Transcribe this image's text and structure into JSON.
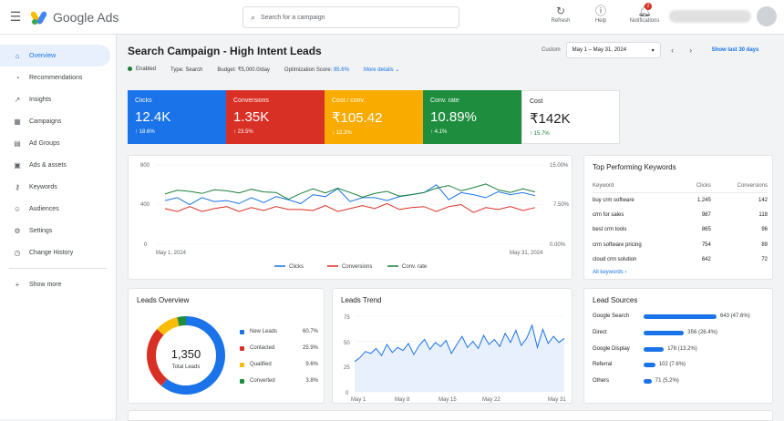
{
  "app": {
    "title": "Google Ads"
  },
  "search": {
    "placeholder": "Search for a campaign"
  },
  "top_actions": [
    {
      "label": "Refresh",
      "icon": "refresh-icon"
    },
    {
      "label": "Help",
      "icon": "help-icon"
    },
    {
      "label": "Notifications",
      "icon": "bell-icon",
      "badge": "2"
    }
  ],
  "sidebar": {
    "items": [
      {
        "label": "Overview",
        "icon": "home-icon",
        "active": true
      },
      {
        "label": "Recommendations",
        "icon": "lightbulb-icon"
      },
      {
        "label": "Insights",
        "icon": "insights-icon"
      },
      {
        "label": "Campaigns",
        "icon": "campaigns-icon"
      },
      {
        "label": "Ad Groups",
        "icon": "ad-groups-icon"
      },
      {
        "label": "Ads & assets",
        "icon": "ads-icon"
      },
      {
        "label": "Keywords",
        "icon": "key-icon"
      },
      {
        "label": "Audiences",
        "icon": "audience-icon"
      },
      {
        "label": "Settings",
        "icon": "settings-icon"
      },
      {
        "label": "Change History",
        "icon": "history-icon"
      }
    ],
    "show_more": "Show more"
  },
  "header": {
    "title": "Search Campaign - High Intent Leads",
    "status": "Enabled",
    "type": "Type: Search",
    "budget": "Budget: ₹5,000.0/day",
    "optimization_label": "Optimization Score:",
    "optimization_value": "85.6%",
    "more_details": "More details",
    "custom_label": "Custom",
    "date_range": "May 1 – May 31, 2024",
    "show_last": "Show last 30 days"
  },
  "metrics": [
    {
      "label": "Clicks",
      "value": "12.4K",
      "delta": "↑ 18.6%",
      "color": "#1a73e8"
    },
    {
      "label": "Conversions",
      "value": "1.35K",
      "delta": "↑ 23.5%",
      "color": "#d93025"
    },
    {
      "label": "Cost / conv.",
      "value": "₹105.42",
      "delta": "↓ 12.3%",
      "color": "#f9ab00"
    },
    {
      "label": "Conv. rate",
      "value": "10.89%",
      "delta": "↑ 4.1%",
      "color": "#1e8e3e"
    },
    {
      "label": "Cost",
      "value": "₹142K",
      "delta": "↑ 15.7%",
      "color": "#ffffff"
    }
  ],
  "chart_data": [
    {
      "type": "line",
      "x_labels": [
        "May 1, 2024",
        "May 31, 2024"
      ],
      "y_left": {
        "ticks": [
          "800",
          "400",
          "0"
        ],
        "ylim": [
          0,
          800
        ]
      },
      "y_right": {
        "ticks": [
          "15.00%",
          "7.50%",
          "0.00%"
        ],
        "ylim": [
          0,
          15
        ]
      },
      "series": [
        {
          "name": "Clicks",
          "color": "#1a73e8",
          "axis": "left",
          "values": [
            440,
            470,
            400,
            470,
            430,
            440,
            410,
            470,
            420,
            480,
            450,
            410,
            500,
            480,
            560,
            430,
            470,
            470,
            440,
            480,
            500,
            520,
            600,
            450,
            520,
            500,
            470,
            530,
            500,
            520,
            490
          ]
        },
        {
          "name": "Conversions",
          "color": "#d93025",
          "axis": "left",
          "values": [
            360,
            330,
            380,
            330,
            360,
            380,
            330,
            370,
            340,
            380,
            350,
            350,
            340,
            390,
            330,
            360,
            390,
            360,
            410,
            350,
            370,
            380,
            330,
            380,
            400,
            320,
            370,
            350,
            380,
            340,
            370
          ]
        },
        {
          "name": "Conv. rate",
          "color": "#188038",
          "axis": "right",
          "values": [
            9.5,
            10.2,
            10.0,
            9.6,
            10.3,
            10.1,
            9.7,
            10.4,
            9.9,
            9.8,
            8.5,
            9.6,
            10.5,
            9.7,
            10.6,
            9.8,
            8.9,
            9.6,
            10.0,
            9.1,
            9.4,
            9.8,
            10.6,
            11.1,
            10.1,
            10.7,
            11.4,
            10.3,
            9.8,
            10.5,
            9.9
          ]
        }
      ]
    },
    {
      "type": "pie",
      "title": "Leads Overview",
      "center_value": "1,350",
      "center_label": "Total Leads",
      "slices": [
        {
          "name": "New Leads",
          "value": 60.7,
          "label": "60.7%",
          "color": "#1a73e8"
        },
        {
          "name": "Contacted",
          "value": 25.9,
          "label": "25.9%",
          "color": "#d93025"
        },
        {
          "name": "Qualified",
          "value": 9.6,
          "label": "9.6%",
          "color": "#fbbc04"
        },
        {
          "name": "Converted",
          "value": 3.8,
          "label": "3.8%",
          "color": "#1e8e3e"
        }
      ]
    },
    {
      "type": "area",
      "title": "Leads Trend",
      "x_labels": [
        "May 1",
        "May 8",
        "May 15",
        "May 22",
        "May 31"
      ],
      "y_ticks": [
        "75",
        "50",
        "25",
        "0"
      ],
      "ylim": [
        0,
        75
      ],
      "values": [
        30,
        34,
        40,
        38,
        43,
        36,
        47,
        39,
        44,
        41,
        48,
        37,
        46,
        52,
        42,
        49,
        45,
        51,
        38,
        47,
        55,
        44,
        50,
        43,
        56,
        47,
        52,
        45,
        58,
        49,
        61,
        46,
        53,
        66,
        44,
        62,
        48,
        55,
        49,
        53
      ]
    },
    {
      "type": "bar",
      "title": "Lead Sources",
      "categories": [
        "Google Search",
        "Direct",
        "Google Display",
        "Referral",
        "Others"
      ],
      "values": [
        643,
        356,
        178,
        102,
        71
      ],
      "value_labels": [
        "643 (47.6%)",
        "356 (26.4%)",
        "178 (13.2%)",
        "102 (7.6%)",
        "71 (5.2%)"
      ]
    }
  ],
  "legend": [
    "Clicks",
    "Conversions",
    "Conv. rate"
  ],
  "keywords": {
    "title": "Top Performing Keywords",
    "headers": [
      "Keyword",
      "Clicks",
      "Conversions"
    ],
    "rows": [
      [
        "buy crm software",
        "1,245",
        "142"
      ],
      [
        "crm for sales",
        "987",
        "118"
      ],
      [
        "best crm tools",
        "865",
        "96"
      ],
      [
        "crm software pricing",
        "754",
        "89"
      ],
      [
        "cloud crm solution",
        "642",
        "72"
      ]
    ],
    "all_link": "All keywords ›"
  }
}
